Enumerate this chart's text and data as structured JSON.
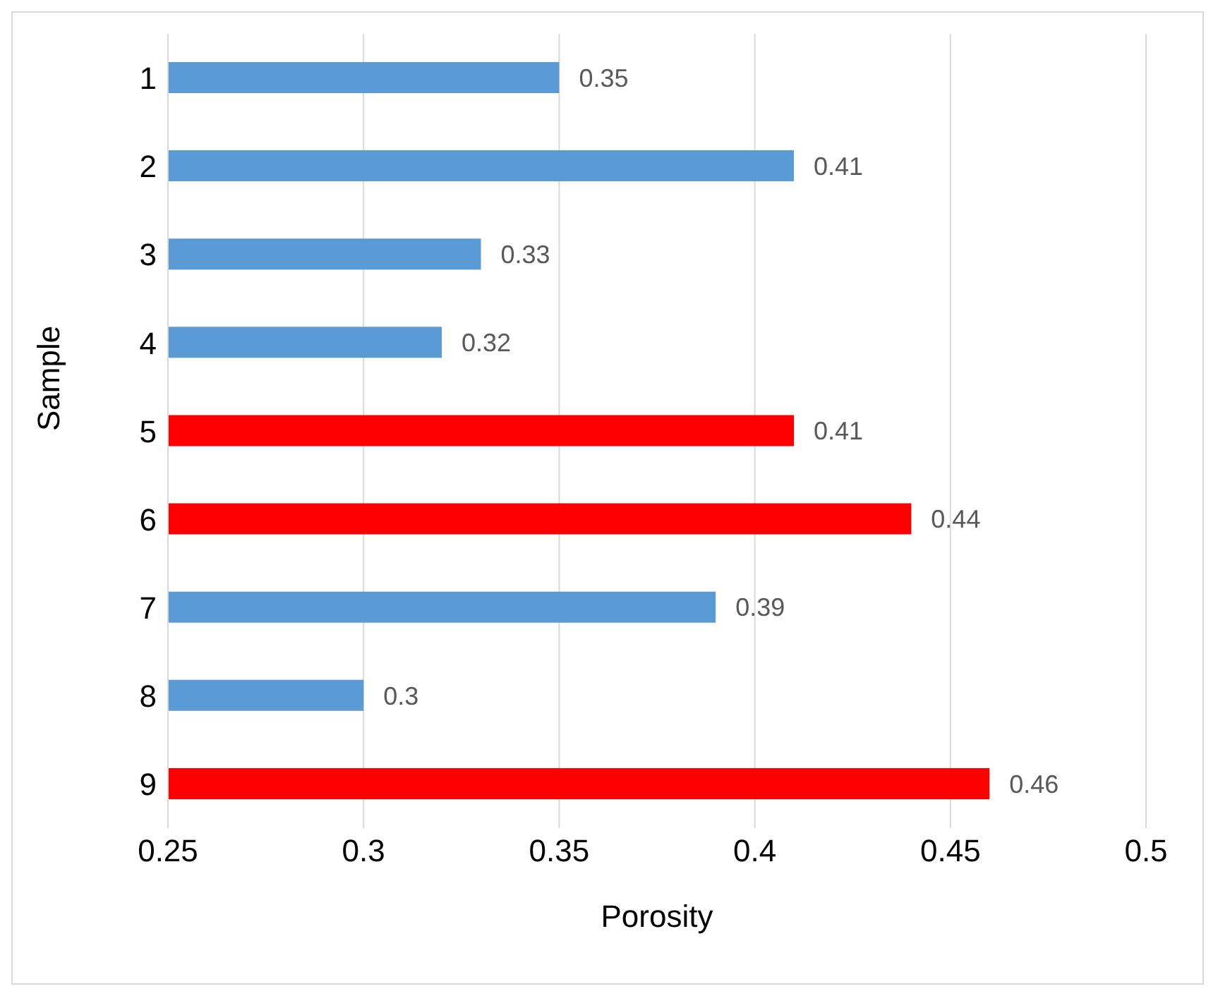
{
  "chart_data": {
    "type": "bar",
    "orientation": "horizontal",
    "xlabel": "Porosity",
    "ylabel": "Sample",
    "categories": [
      "1",
      "2",
      "3",
      "4",
      "5",
      "6",
      "7",
      "8",
      "9"
    ],
    "values": [
      0.35,
      0.41,
      0.33,
      0.32,
      0.41,
      0.44,
      0.39,
      0.3,
      0.46
    ],
    "colors": [
      "#5b9bd5",
      "#5b9bd5",
      "#5b9bd5",
      "#5b9bd5",
      "#ff0000",
      "#ff0000",
      "#5b9bd5",
      "#5b9bd5",
      "#ff0000"
    ],
    "xlim": [
      0.25,
      0.5
    ],
    "xticks": [
      0.25,
      0.3,
      0.35,
      0.4,
      0.45,
      0.5
    ],
    "grid": "x",
    "data_labels": true,
    "legend": false
  }
}
